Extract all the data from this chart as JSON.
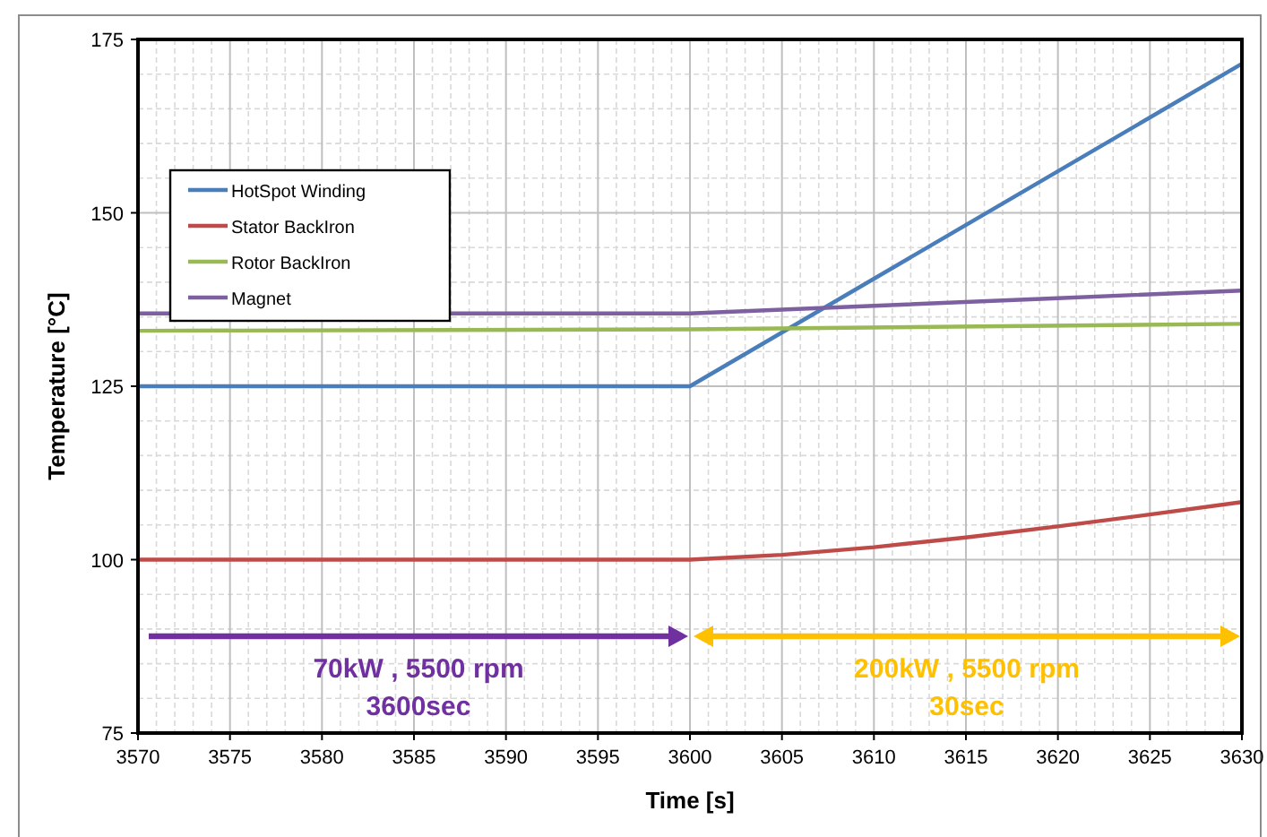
{
  "chart_data": {
    "type": "line",
    "xlabel": "Time [s]",
    "ylabel": "Temperature [°C]",
    "xlim": [
      3570,
      3630
    ],
    "xticks": [
      3570,
      3575,
      3580,
      3585,
      3590,
      3595,
      3600,
      3605,
      3610,
      3615,
      3620,
      3625,
      3630
    ],
    "ylim": [
      75,
      175
    ],
    "yticks": [
      75,
      100,
      125,
      150,
      175
    ],
    "grid": true,
    "legend": "top left",
    "marker": "none",
    "line_style": "solid",
    "series": [
      {
        "name": "HotSpot Winding",
        "color": "#4a7ebb",
        "x": [
          3570,
          3600,
          3630
        ],
        "values": [
          125,
          125,
          171.5
        ]
      },
      {
        "name": "Stator BackIron",
        "color": "#be4b48",
        "x": [
          3570,
          3600,
          3605,
          3610,
          3615,
          3620,
          3625,
          3630
        ],
        "values": [
          100,
          100,
          100.7,
          101.8,
          103.2,
          104.8,
          106.5,
          108.3
        ]
      },
      {
        "name": "Rotor BackIron",
        "color": "#98b954",
        "x": [
          3570,
          3600,
          3630
        ],
        "values": [
          133,
          133.2,
          134
        ]
      },
      {
        "name": "Magnet",
        "color": "#7d60a0",
        "x": [
          3570,
          3600,
          3610,
          3620,
          3630
        ],
        "values": [
          135.5,
          135.5,
          136.6,
          137.7,
          138.8
        ]
      }
    ],
    "annotations": [
      "70kW , 5500 rpm\n3600sec",
      "200kW , 5500 rpm\n30sec"
    ]
  }
}
